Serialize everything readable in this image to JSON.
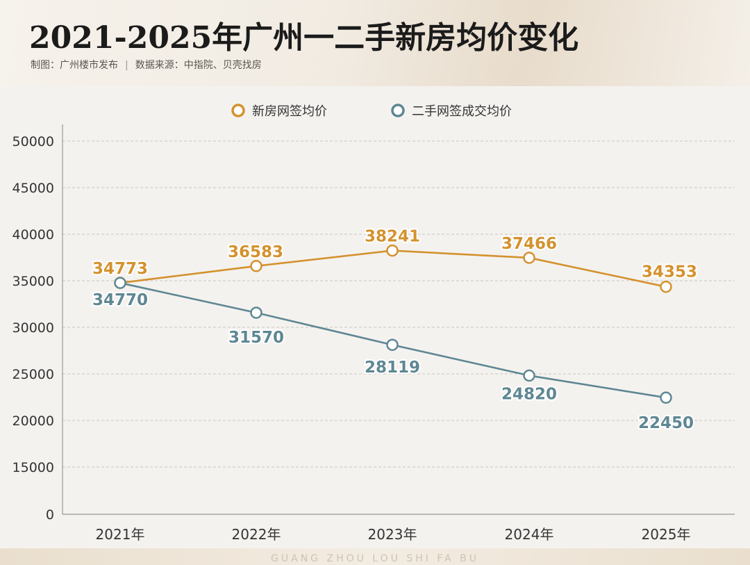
{
  "header": {
    "title": "2021-2025年广州一二手新房均价变化",
    "credit": "制图：广州楼市发布",
    "source": "数据来源：中指院、贝壳找房",
    "separator": "|"
  },
  "footer": {
    "watermark": "GUANG ZHOU LOU SHI FA BU"
  },
  "colors": {
    "new_series": "#d4922e",
    "second_series": "#5e8793",
    "grid": "#c9c5bf",
    "axis_text": "#333333"
  },
  "chart_data": {
    "type": "line",
    "title": "2021-2025年广州一二手新房均价变化",
    "categories": [
      "2021年",
      "2022年",
      "2023年",
      "2024年",
      "2025年"
    ],
    "series": [
      {
        "name": "新房网签均价",
        "values": [
          34773,
          36583,
          38241,
          37466,
          34353
        ],
        "labels": [
          "34773",
          "36583",
          "38241",
          "37466",
          "34353"
        ]
      },
      {
        "name": "二手网签成交均价",
        "values": [
          34770,
          31570,
          28119,
          24820,
          22450
        ],
        "labels": [
          "34770",
          "31570",
          "28119",
          "24820",
          "22450"
        ]
      }
    ],
    "y_ticks": [
      "0",
      "15000",
      "20000",
      "25000",
      "30000",
      "35000",
      "40000",
      "45000",
      "50000"
    ],
    "ylim": [
      0,
      50000
    ],
    "grid": true,
    "legend_position": "top-center",
    "xlabel": "",
    "ylabel": ""
  }
}
